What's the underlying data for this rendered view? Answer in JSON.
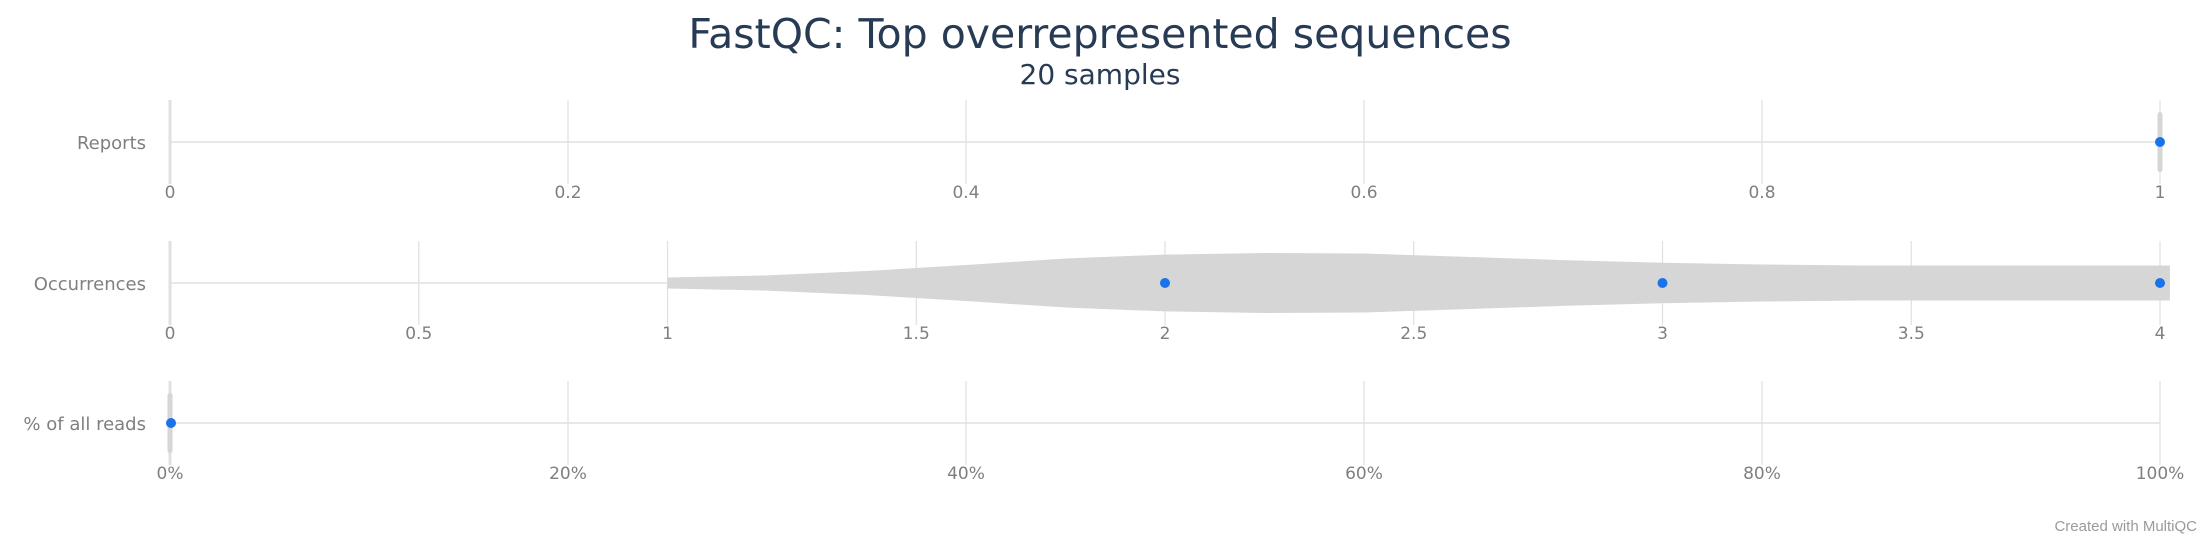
{
  "title": "FastQC: Top overrepresented sequences",
  "subtitle": "20 samples",
  "credit": "Created with MultiQC",
  "colors": {
    "point": "#1a73e8",
    "violin": "#d6d6d6",
    "grid": "#e0e0e0",
    "text": "#7f7f7f",
    "title": "#273b55"
  },
  "chart_data": {
    "type": "violin",
    "panels": [
      {
        "label": "Reports",
        "xlim": [
          0,
          1
        ],
        "ticks": [
          0,
          0.2,
          0.4,
          0.6,
          0.8,
          1
        ],
        "tick_labels": [
          "0",
          "0.2",
          "0.4",
          "0.6",
          "0.8",
          "1"
        ],
        "points": [
          1
        ],
        "violin_range": [
          1,
          1
        ]
      },
      {
        "label": "Occurrences",
        "xlim": [
          0,
          4
        ],
        "ticks": [
          0,
          0.5,
          1,
          1.5,
          2,
          2.5,
          3,
          3.5,
          4
        ],
        "tick_labels": [
          "0",
          "0.5",
          "1",
          "1.5",
          "2",
          "2.5",
          "3",
          "3.5",
          "4"
        ],
        "points": [
          2,
          3,
          4
        ],
        "violin_range": [
          1,
          4.02
        ]
      },
      {
        "label": "% of all reads",
        "xlim": [
          0,
          100
        ],
        "ticks": [
          0,
          20,
          40,
          60,
          80,
          100
        ],
        "tick_labels": [
          "0%",
          "20%",
          "40%",
          "60%",
          "80%",
          "100%"
        ],
        "points": [
          0.05
        ],
        "violin_range": [
          0,
          0.2
        ]
      }
    ]
  }
}
